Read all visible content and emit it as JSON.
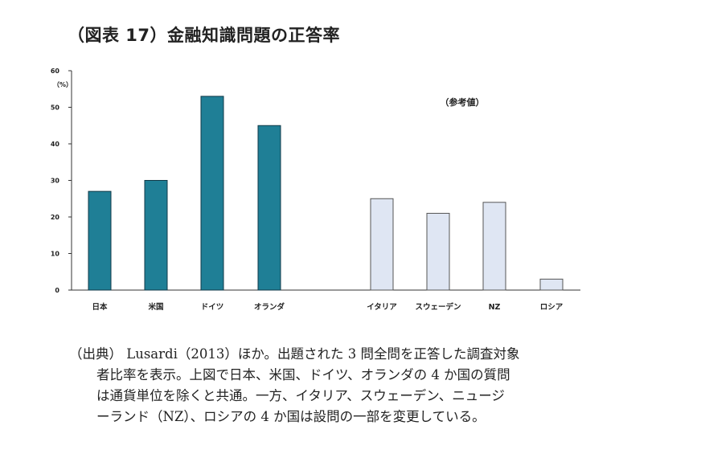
{
  "title": "（図表 17）金融知識問題の正答率",
  "chart_data": {
    "type": "bar",
    "unit_label": "（%）",
    "note": "（参考値）",
    "ylim": [
      0,
      60
    ],
    "yticks": [
      0,
      10,
      20,
      30,
      40,
      50,
      60
    ],
    "categories": [
      "日本",
      "米国",
      "ドイツ",
      "オランダ",
      "イタリア",
      "スウェーデン",
      "NZ",
      "ロシア"
    ],
    "values": [
      27,
      30,
      53,
      45,
      25,
      21,
      24,
      3
    ],
    "colors": {
      "main": "#1f7f96",
      "reference": "#dfe6f3",
      "reference_border": "#555555",
      "main_border": "#123a48"
    }
  },
  "source": {
    "line1": "（出典） Lusardi（2013）ほか。出題された 3 問全問を正答した調査対象",
    "line2": "者比率を表示。上図で日本、米国、ドイツ、オランダの 4 か国の質問",
    "line3": "は通貨単位を除くと共通。一方、イタリア、スウェーデン、ニュージ",
    "line4": "ーランド（NZ）、ロシアの 4 か国は設問の一部を変更している。"
  }
}
